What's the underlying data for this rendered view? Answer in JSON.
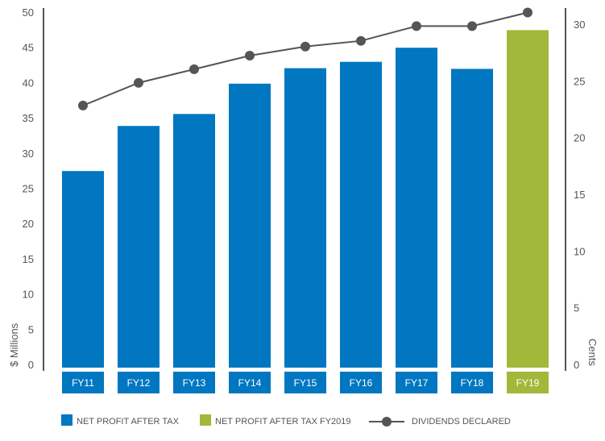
{
  "chart_data": {
    "type": "bar",
    "categories": [
      "FY11",
      "FY12",
      "FY13",
      "FY14",
      "FY15",
      "FY16",
      "FY17",
      "FY18",
      "FY19"
    ],
    "series": [
      {
        "name": "NET PROFIT AFTER TAX",
        "axis": "left",
        "type": "bar",
        "values": [
          27.9,
          34.3,
          36.0,
          40.3,
          42.5,
          43.4,
          45.4,
          42.4,
          null
        ],
        "color": "#0077c0"
      },
      {
        "name": "NET PROFIT AFTER TAX FY2019",
        "axis": "left",
        "type": "bar",
        "values": [
          null,
          null,
          null,
          null,
          null,
          null,
          null,
          null,
          47.9
        ],
        "color": "#a2b83a"
      },
      {
        "name": "DIVIDENDS DECLARED",
        "axis": "right",
        "type": "line",
        "values": [
          22.9,
          24.9,
          26.1,
          27.3,
          28.1,
          28.6,
          29.9,
          29.9,
          31.1
        ],
        "color": "#555555"
      }
    ],
    "ylabel": "$ Millions",
    "ylim": [
      0,
      50
    ],
    "yticks": [
      0,
      5,
      10,
      15,
      20,
      25,
      30,
      35,
      40,
      45,
      50
    ],
    "y2label": "Cents",
    "y2lim": [
      0,
      30
    ],
    "y2ticks": [
      0,
      5,
      10,
      15,
      20,
      25,
      30
    ],
    "grid": false,
    "legend": "bottom"
  }
}
